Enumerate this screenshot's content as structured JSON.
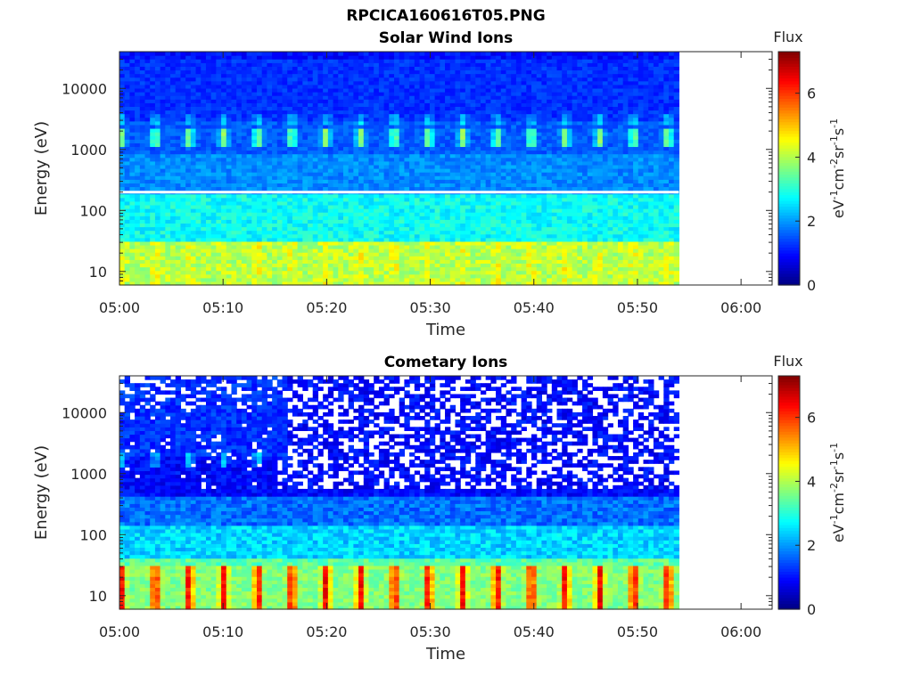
{
  "figure": {
    "title": "RPCICA160616T05.PNG"
  },
  "chart_data": [
    {
      "type": "heatmap",
      "title": "Solar Wind Ions",
      "xlabel": "Time",
      "ylabel": "Energy (eV)",
      "x_range": [
        "05:00",
        "06:03"
      ],
      "data_end": "05:54",
      "x_ticks": [
        "05:00",
        "05:10",
        "05:20",
        "05:30",
        "05:40",
        "05:50",
        "06:00"
      ],
      "y_scale": "log",
      "y_range": [
        6,
        40000
      ],
      "y_ticks": [
        10,
        100,
        1000,
        10000
      ],
      "y_tick_labels": [
        "10",
        "100",
        "1000",
        "10000"
      ],
      "colorbar": {
        "title": "Flux",
        "label": "eV-1cm-2sr-1s-1",
        "range": [
          0,
          7.3
        ],
        "ticks": [
          0,
          2,
          4,
          6
        ],
        "colormap": "jet"
      },
      "features": {
        "baseline_flux": "~1 at high energies rising to ~2.5-3 below 200 eV",
        "low_energy_band": "~4-4.5 flux at 8-30 eV with periodic enhancements",
        "pulsed_band": "periodic ~3.5-4 flux peaks near 1500 eV roughly every 3.3 minutes",
        "white_line_energy": 200
      }
    },
    {
      "type": "heatmap",
      "title": "Cometary Ions",
      "xlabel": "Time",
      "ylabel": "Energy (eV)",
      "x_range": [
        "05:00",
        "06:03"
      ],
      "data_end": "05:54",
      "x_ticks": [
        "05:00",
        "05:10",
        "05:20",
        "05:30",
        "05:40",
        "05:50",
        "06:00"
      ],
      "y_scale": "log",
      "y_range": [
        6,
        40000
      ],
      "y_ticks": [
        10,
        100,
        1000,
        10000
      ],
      "y_tick_labels": [
        "10",
        "100",
        "1000",
        "10000"
      ],
      "colorbar": {
        "title": "Flux",
        "label": "eV-1cm-2sr-1s-1",
        "range": [
          0,
          7.3
        ],
        "ticks": [
          0,
          2,
          4,
          6
        ],
        "colormap": "jet"
      },
      "features": {
        "baseline_flux": "~0.5-1 at high energies with many empty bins after 05:16",
        "low_energy_band": "periodic pulses reaching ~5.5-6.5 flux at 10-30 eV roughly every 3.3 minutes",
        "pulsed_band": "weak ~2.5-3 flux peaks near 1500 eV before 05:16"
      }
    }
  ],
  "seed": 7
}
